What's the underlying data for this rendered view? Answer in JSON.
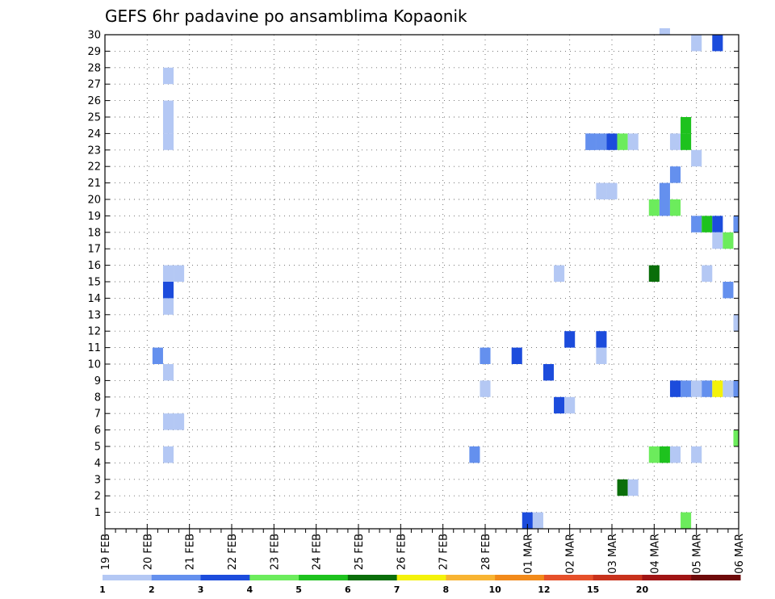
{
  "chart_data": {
    "type": "heatmap",
    "title": "GEFS 6hr padavine po ansamblima Kopaonik",
    "xlabel": "",
    "ylabel": "",
    "x_tick_labels": [
      "19 FEB",
      "20 FEB",
      "21 FEB",
      "22 FEB",
      "23 FEB",
      "24 FEB",
      "25 FEB",
      "26 FEB",
      "27 FEB",
      "28 FEB",
      "01 MAR",
      "02 MAR",
      "03 MAR",
      "04 MAR",
      "05 MAR",
      "06 MAR"
    ],
    "y_tick_labels": [
      "1",
      "2",
      "3",
      "4",
      "5",
      "6",
      "7",
      "8",
      "9",
      "10",
      "11",
      "12",
      "13",
      "14",
      "15",
      "16",
      "17",
      "18",
      "19",
      "20",
      "21",
      "22",
      "23",
      "24",
      "25",
      "26",
      "27",
      "28",
      "29",
      "30"
    ],
    "x_range_steps": [
      0,
      60
    ],
    "x_step_hours": 6,
    "y_range": [
      0,
      30
    ],
    "grid": true,
    "legend_position": "bottom",
    "colorbar": {
      "colors": [
        "#b4c8f4",
        "#6490ee",
        "#1c4cdc",
        "#6cec5c",
        "#1ec21e",
        "#0a6e0a",
        "#f4f20a",
        "#f8b432",
        "#f28a1a",
        "#e6502a",
        "#c8321c",
        "#a01414",
        "#6e0a0a"
      ],
      "labels": [
        "1",
        "2",
        "3",
        "4",
        "5",
        "6",
        "7",
        "8",
        "10",
        "12",
        "15",
        "20"
      ]
    },
    "cells_step_member_level": [
      [
        6,
        4,
        1
      ],
      [
        6,
        6,
        1
      ],
      [
        6,
        9,
        1
      ],
      [
        6,
        13,
        1
      ],
      [
        6,
        15,
        1
      ],
      [
        6,
        23,
        1
      ],
      [
        6,
        24,
        1
      ],
      [
        6,
        25,
        1
      ],
      [
        6,
        27,
        1
      ],
      [
        6,
        14,
        3
      ],
      [
        7,
        15,
        1
      ],
      [
        7,
        6,
        1
      ],
      [
        5,
        10,
        2
      ],
      [
        35,
        4,
        2
      ],
      [
        36,
        8,
        1
      ],
      [
        36,
        10,
        2
      ],
      [
        39,
        10,
        3
      ],
      [
        40,
        0,
        3
      ],
      [
        41,
        0,
        1
      ],
      [
        42,
        9,
        3
      ],
      [
        43,
        7,
        3
      ],
      [
        44,
        7,
        1
      ],
      [
        43,
        15,
        1
      ],
      [
        44,
        11,
        3
      ],
      [
        46,
        23,
        2
      ],
      [
        46,
        23,
        2
      ],
      [
        47,
        23,
        2
      ],
      [
        47,
        20,
        1
      ],
      [
        47,
        10,
        1
      ],
      [
        47,
        11,
        3
      ],
      [
        48,
        20,
        1
      ],
      [
        48,
        23,
        3
      ],
      [
        49,
        23,
        4
      ],
      [
        49,
        2,
        6
      ],
      [
        50,
        23,
        1
      ],
      [
        50,
        2,
        1
      ],
      [
        52,
        19,
        4
      ],
      [
        52,
        4,
        4
      ],
      [
        52,
        15,
        6
      ],
      [
        53,
        19,
        2
      ],
      [
        53,
        20,
        2
      ],
      [
        53,
        4,
        5
      ],
      [
        54,
        19,
        4
      ],
      [
        54,
        4,
        1
      ],
      [
        54,
        8,
        3
      ],
      [
        54,
        21,
        2
      ],
      [
        54,
        23,
        1
      ],
      [
        55,
        8,
        2
      ],
      [
        55,
        24,
        5
      ],
      [
        55,
        23,
        5
      ],
      [
        55,
        0,
        4
      ],
      [
        56,
        8,
        1
      ],
      [
        56,
        18,
        2
      ],
      [
        56,
        4,
        1
      ],
      [
        56,
        22,
        1
      ],
      [
        56,
        29,
        1
      ],
      [
        57,
        18,
        5
      ],
      [
        57,
        8,
        2
      ],
      [
        57,
        15,
        1
      ],
      [
        58,
        18,
        3
      ],
      [
        58,
        17,
        1
      ],
      [
        58,
        8,
        7
      ],
      [
        58,
        29,
        3
      ],
      [
        59,
        17,
        4
      ],
      [
        59,
        8,
        1
      ],
      [
        59,
        14,
        2
      ],
      [
        60,
        18,
        2
      ],
      [
        60,
        12,
        1
      ],
      [
        60,
        8,
        2
      ],
      [
        60,
        5,
        4
      ]
    ],
    "top_edge_cells_step_level": [
      [
        53,
        1
      ]
    ]
  }
}
